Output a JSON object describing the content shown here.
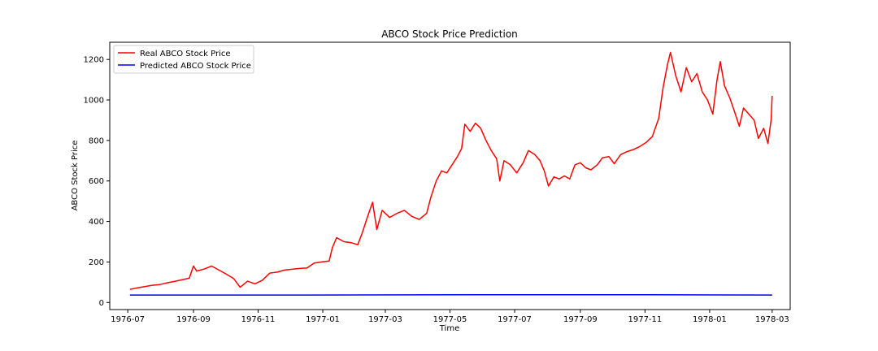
{
  "chart_data": {
    "type": "line",
    "title": "ABCO Stock Price Prediction",
    "xlabel": "Time",
    "ylabel": "ABCO Stock Price",
    "xlim": [
      "1976-06-14",
      "1978-03-18"
    ],
    "ylim": [
      -35,
      1285
    ],
    "x_ticks": [
      "1976-07",
      "1976-09",
      "1976-11",
      "1977-01",
      "1977-03",
      "1977-05",
      "1977-07",
      "1977-09",
      "1977-11",
      "1978-01",
      "1978-03"
    ],
    "y_ticks": [
      0,
      200,
      400,
      600,
      800,
      1000,
      1200
    ],
    "grid": false,
    "legend_position": "top-left",
    "series": [
      {
        "name": "Real ABCO Stock Price",
        "color": "#ff0000",
        "points": [
          [
            "1976-07-03",
            65
          ],
          [
            "1976-07-10",
            72
          ],
          [
            "1976-07-17",
            78
          ],
          [
            "1976-07-24",
            85
          ],
          [
            "1976-07-31",
            88
          ],
          [
            "1976-08-07",
            97
          ],
          [
            "1976-08-14",
            104
          ],
          [
            "1976-08-21",
            112
          ],
          [
            "1976-08-28",
            120
          ],
          [
            "1976-09-01",
            180
          ],
          [
            "1976-09-04",
            155
          ],
          [
            "1976-09-11",
            165
          ],
          [
            "1976-09-18",
            180
          ],
          [
            "1976-09-25",
            160
          ],
          [
            "1976-10-02",
            140
          ],
          [
            "1976-10-09",
            118
          ],
          [
            "1976-10-15",
            75
          ],
          [
            "1976-10-22",
            105
          ],
          [
            "1976-10-29",
            92
          ],
          [
            "1976-11-05",
            110
          ],
          [
            "1976-11-12",
            145
          ],
          [
            "1976-11-19",
            150
          ],
          [
            "1976-11-26",
            160
          ],
          [
            "1976-12-03",
            164
          ],
          [
            "1976-12-10",
            168
          ],
          [
            "1976-12-17",
            170
          ],
          [
            "1976-12-24",
            195
          ],
          [
            "1976-12-31",
            200
          ],
          [
            "1977-01-07",
            205
          ],
          [
            "1977-01-10",
            270
          ],
          [
            "1977-01-14",
            320
          ],
          [
            "1977-01-21",
            300
          ],
          [
            "1977-01-28",
            295
          ],
          [
            "1977-02-03",
            285
          ],
          [
            "1977-02-07",
            340
          ],
          [
            "1977-02-12",
            420
          ],
          [
            "1977-02-17",
            495
          ],
          [
            "1977-02-21",
            360
          ],
          [
            "1977-02-26",
            455
          ],
          [
            "1977-03-05",
            420
          ],
          [
            "1977-03-12",
            440
          ],
          [
            "1977-03-19",
            455
          ],
          [
            "1977-03-26",
            425
          ],
          [
            "1977-04-02",
            410
          ],
          [
            "1977-04-09",
            440
          ],
          [
            "1977-04-13",
            520
          ],
          [
            "1977-04-18",
            600
          ],
          [
            "1977-04-23",
            650
          ],
          [
            "1977-04-28",
            640
          ],
          [
            "1977-05-03",
            680
          ],
          [
            "1977-05-08",
            720
          ],
          [
            "1977-05-12",
            760
          ],
          [
            "1977-05-15",
            880
          ],
          [
            "1977-05-20",
            845
          ],
          [
            "1977-05-25",
            885
          ],
          [
            "1977-05-30",
            860
          ],
          [
            "1977-06-04",
            800
          ],
          [
            "1977-06-09",
            750
          ],
          [
            "1977-06-14",
            710
          ],
          [
            "1977-06-17",
            600
          ],
          [
            "1977-06-21",
            700
          ],
          [
            "1977-06-27",
            680
          ],
          [
            "1977-07-03",
            640
          ],
          [
            "1977-07-09",
            690
          ],
          [
            "1977-07-14",
            750
          ],
          [
            "1977-07-20",
            730
          ],
          [
            "1977-07-25",
            700
          ],
          [
            "1977-07-29",
            650
          ],
          [
            "1977-08-02",
            575
          ],
          [
            "1977-08-07",
            620
          ],
          [
            "1977-08-12",
            610
          ],
          [
            "1977-08-17",
            625
          ],
          [
            "1977-08-22",
            610
          ],
          [
            "1977-08-27",
            680
          ],
          [
            "1977-09-01",
            690
          ],
          [
            "1977-09-06",
            665
          ],
          [
            "1977-09-11",
            655
          ],
          [
            "1977-09-17",
            680
          ],
          [
            "1977-09-22",
            715
          ],
          [
            "1977-09-28",
            720
          ],
          [
            "1977-10-03",
            685
          ],
          [
            "1977-10-09",
            730
          ],
          [
            "1977-10-15",
            745
          ],
          [
            "1977-10-21",
            755
          ],
          [
            "1977-10-27",
            770
          ],
          [
            "1977-11-02",
            790
          ],
          [
            "1977-11-08",
            820
          ],
          [
            "1977-11-14",
            910
          ],
          [
            "1977-11-18",
            1060
          ],
          [
            "1977-11-22",
            1170
          ],
          [
            "1977-11-25",
            1235
          ],
          [
            "1977-11-30",
            1120
          ],
          [
            "1977-12-05",
            1040
          ],
          [
            "1977-12-10",
            1160
          ],
          [
            "1977-12-15",
            1090
          ],
          [
            "1977-12-20",
            1130
          ],
          [
            "1977-12-25",
            1040
          ],
          [
            "1977-12-30",
            1000
          ],
          [
            "1978-01-04",
            930
          ],
          [
            "1978-01-08",
            1100
          ],
          [
            "1978-01-11",
            1190
          ],
          [
            "1978-01-15",
            1070
          ],
          [
            "1978-01-20",
            1010
          ],
          [
            "1978-01-24",
            950
          ],
          [
            "1978-01-29",
            870
          ],
          [
            "1978-02-02",
            960
          ],
          [
            "1978-02-07",
            930
          ],
          [
            "1978-02-12",
            900
          ],
          [
            "1978-02-16",
            810
          ],
          [
            "1978-02-21",
            860
          ],
          [
            "1978-02-25",
            785
          ],
          [
            "1978-02-28",
            900
          ],
          [
            "1978-03-01",
            1020
          ]
        ]
      },
      {
        "name": "Predicted ABCO Stock Price",
        "color": "#0000ff",
        "points": [
          [
            "1976-07-03",
            37
          ],
          [
            "1976-12-01",
            37
          ],
          [
            "1977-06-01",
            38
          ],
          [
            "1977-11-01",
            38
          ],
          [
            "1978-03-01",
            37
          ]
        ]
      }
    ]
  }
}
